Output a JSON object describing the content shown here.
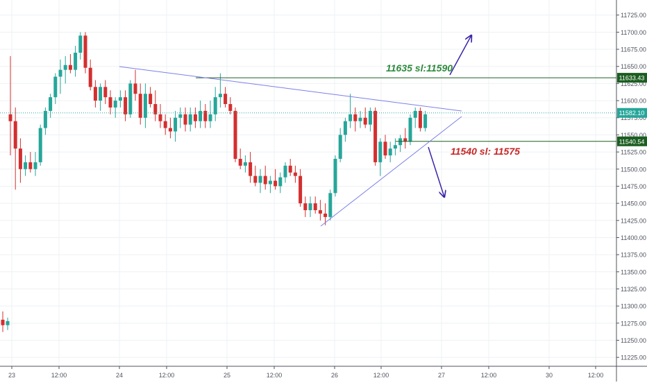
{
  "chart_data": {
    "type": "candlestick",
    "title": "",
    "xlabel": "",
    "ylabel": "",
    "ylim": [
      11212,
      11747
    ],
    "y_ticks": [
      11225,
      11250,
      11275,
      11300,
      11325,
      11350,
      11375,
      11400,
      11425,
      11450,
      11475,
      11500,
      11525,
      11550,
      11575,
      11600,
      11625,
      11650,
      11675,
      11700,
      11725
    ],
    "x_ticks": [
      "23",
      "12:00",
      "24",
      "12:00",
      "25",
      "12:00",
      "26",
      "12:00",
      "27",
      "12:00",
      "30",
      "12:00"
    ],
    "grid": true,
    "colors": {
      "up": "#26a69a",
      "down": "#d32f2f",
      "background": "#ffffff",
      "grid": "#eef0f3",
      "trend": "#7b7fe8",
      "green_level": "#1b5e20",
      "annotation_green": "#2e8b3d",
      "annotation_red": "#c62828",
      "arrow": "#3a24a8"
    },
    "series": [
      {
        "values": [
          [
            11280,
            11292,
            11262,
            11272
          ],
          [
            11272,
            11283,
            11265,
            11278
          ],
          [
            11580,
            11665,
            11520,
            11570
          ],
          [
            11570,
            11590,
            11470,
            11530
          ],
          [
            11530,
            11545,
            11480,
            11500
          ],
          [
            11500,
            11520,
            11490,
            11510
          ],
          [
            11510,
            11525,
            11495,
            11500
          ],
          [
            11500,
            11525,
            11490,
            11510
          ],
          [
            11510,
            11565,
            11505,
            11560
          ],
          [
            11560,
            11590,
            11550,
            11585
          ],
          [
            11585,
            11610,
            11575,
            11605
          ],
          [
            11605,
            11640,
            11595,
            11635
          ],
          [
            11635,
            11660,
            11610,
            11645
          ],
          [
            11645,
            11665,
            11625,
            11652
          ],
          [
            11652,
            11668,
            11640,
            11645
          ],
          [
            11645,
            11680,
            11635,
            11670
          ],
          [
            11670,
            11700,
            11660,
            11695
          ],
          [
            11695,
            11700,
            11640,
            11648
          ],
          [
            11648,
            11660,
            11615,
            11620
          ],
          [
            11620,
            11630,
            11590,
            11600
          ],
          [
            11600,
            11625,
            11585,
            11620
          ],
          [
            11620,
            11630,
            11595,
            11605
          ],
          [
            11605,
            11615,
            11580,
            11590
          ],
          [
            11590,
            11605,
            11575,
            11600
          ],
          [
            11600,
            11615,
            11590,
            11605
          ],
          [
            11605,
            11615,
            11570,
            11580
          ],
          [
            11580,
            11630,
            11575,
            11625
          ],
          [
            11625,
            11645,
            11600,
            11610
          ],
          [
            11610,
            11625,
            11565,
            11575
          ],
          [
            11575,
            11625,
            11560,
            11610
          ],
          [
            11610,
            11620,
            11590,
            11595
          ],
          [
            11595,
            11615,
            11570,
            11580
          ],
          [
            11580,
            11595,
            11560,
            11570
          ],
          [
            11570,
            11580,
            11550,
            11560
          ],
          [
            11560,
            11575,
            11545,
            11555
          ],
          [
            11555,
            11585,
            11540,
            11575
          ],
          [
            11575,
            11590,
            11560,
            11580
          ],
          [
            11580,
            11590,
            11555,
            11565
          ],
          [
            11565,
            11590,
            11555,
            11580
          ],
          [
            11580,
            11590,
            11560,
            11570
          ],
          [
            11570,
            11600,
            11560,
            11585
          ],
          [
            11585,
            11595,
            11560,
            11570
          ],
          [
            11570,
            11600,
            11560,
            11580
          ],
          [
            11580,
            11620,
            11570,
            11605
          ],
          [
            11605,
            11640,
            11590,
            11610
          ],
          [
            11610,
            11620,
            11590,
            11595
          ],
          [
            11595,
            11605,
            11580,
            11585
          ],
          [
            11585,
            11590,
            11510,
            11515
          ],
          [
            11515,
            11530,
            11500,
            11505
          ],
          [
            11505,
            11520,
            11495,
            11510
          ],
          [
            11510,
            11525,
            11480,
            11490
          ],
          [
            11490,
            11505,
            11475,
            11480
          ],
          [
            11480,
            11500,
            11465,
            11490
          ],
          [
            11490,
            11505,
            11470,
            11478
          ],
          [
            11478,
            11490,
            11465,
            11483
          ],
          [
            11483,
            11500,
            11470,
            11475
          ],
          [
            11475,
            11495,
            11465,
            11488
          ],
          [
            11488,
            11510,
            11480,
            11505
          ],
          [
            11505,
            11515,
            11490,
            11495
          ],
          [
            11495,
            11505,
            11480,
            11490
          ],
          [
            11490,
            11500,
            11445,
            11450
          ],
          [
            11450,
            11460,
            11430,
            11440
          ],
          [
            11440,
            11460,
            11430,
            11450
          ],
          [
            11450,
            11460,
            11435,
            11440
          ],
          [
            11440,
            11455,
            11425,
            11435
          ],
          [
            11435,
            11450,
            11418,
            11430
          ],
          [
            11430,
            11470,
            11425,
            11465
          ],
          [
            11465,
            11520,
            11460,
            11515
          ],
          [
            11515,
            11560,
            11510,
            11550
          ],
          [
            11550,
            11575,
            11540,
            11570
          ],
          [
            11570,
            11610,
            11560,
            11580
          ],
          [
            11580,
            11590,
            11555,
            11570
          ],
          [
            11570,
            11585,
            11560,
            11575
          ],
          [
            11575,
            11590,
            11560,
            11565
          ],
          [
            11565,
            11590,
            11555,
            11585
          ],
          [
            11585,
            11590,
            11505,
            11510
          ],
          [
            11510,
            11545,
            11490,
            11540
          ],
          [
            11540,
            11550,
            11515,
            11520
          ],
          [
            11520,
            11540,
            11510,
            11530
          ],
          [
            11530,
            11545,
            11520,
            11535
          ],
          [
            11535,
            11550,
            11525,
            11545
          ],
          [
            11545,
            11560,
            11530,
            11540
          ],
          [
            11540,
            11580,
            11535,
            11575
          ],
          [
            11575,
            11590,
            11560,
            11585
          ],
          [
            11585,
            11590,
            11555,
            11560
          ],
          [
            11560,
            11585,
            11555,
            11580
          ]
        ]
      }
    ],
    "annotations": [
      {
        "text": "11635 sl:11590",
        "color": "annotation_green"
      },
      {
        "text": "11540 sl: 11575",
        "color": "annotation_red"
      }
    ],
    "price_labels": [
      {
        "value": 11633.43,
        "text": "11633.43",
        "color": "#1b5e20"
      },
      {
        "value": 11582.1,
        "text": "11582.10",
        "color": "#26a69a"
      },
      {
        "value": 11540.54,
        "text": "11540.54",
        "color": "#1b5e20"
      }
    ]
  }
}
